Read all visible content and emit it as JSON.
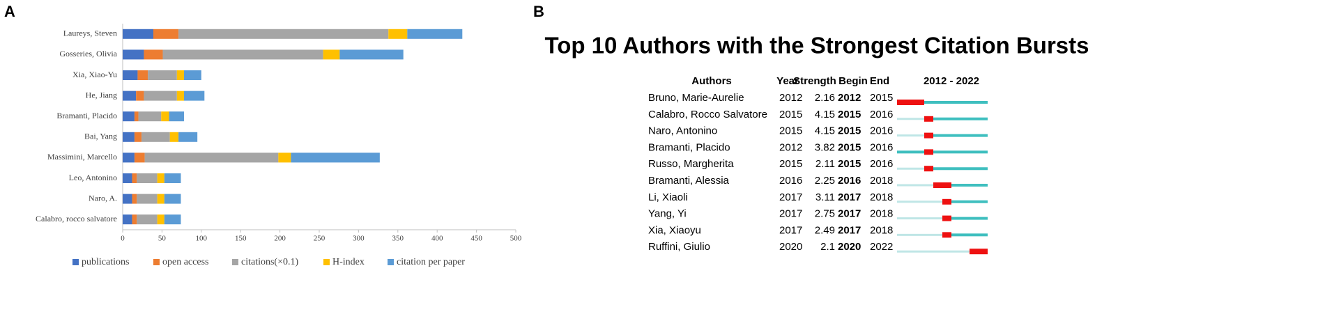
{
  "panel_labels": [
    "A",
    "B"
  ],
  "chart_data": {
    "type": "bar",
    "orientation": "horizontal",
    "stacked": true,
    "categories": [
      "Laureys, Steven",
      "Gosseries, Olivia",
      "Xia, Xiao-Yu",
      "He, Jiang",
      "Bramanti, Placido",
      "Bai, Yang",
      "Massimini, Marcello",
      "Leo, Antonino",
      "Naro, A.",
      "Calabro, rocco salvatore"
    ],
    "series": [
      {
        "name": "publications",
        "color": "#4472c4",
        "values": [
          39,
          27,
          19,
          17,
          15,
          15,
          15,
          12,
          12,
          12
        ]
      },
      {
        "name": "open access",
        "color": "#ed7d31",
        "values": [
          32,
          24,
          13,
          10,
          5,
          9,
          13,
          6,
          6,
          6
        ]
      },
      {
        "name": "citations(×0.1)",
        "color": "#a5a5a5",
        "values": [
          267,
          204,
          37,
          42,
          29,
          36,
          170,
          26,
          26,
          26
        ]
      },
      {
        "name": "H-index",
        "color": "#ffc000",
        "values": [
          24,
          21,
          9,
          9,
          10,
          11,
          16,
          9,
          9,
          9
        ]
      },
      {
        "name": "citation per paper",
        "color": "#5b9bd5",
        "values": [
          70,
          81,
          22,
          26,
          19,
          24,
          113,
          21,
          21,
          21
        ]
      }
    ],
    "xlim": [
      0,
      500
    ],
    "xticks": [
      0,
      50,
      100,
      150,
      200,
      250,
      300,
      350,
      400,
      450,
      500
    ],
    "legend": "bottom"
  },
  "table": {
    "title": "Top 10 Authors with the Strongest Citation Bursts",
    "headers": [
      "Authors",
      "Year",
      "Strength",
      "Begin",
      "End",
      "2012 - 2022"
    ],
    "range": [
      2012,
      2022
    ],
    "rows": [
      [
        "Bruno, Marie-Aurelie",
        2012,
        2.16,
        2012,
        2015
      ],
      [
        "Calabro, Rocco Salvatore",
        2015,
        4.15,
        2015,
        2016
      ],
      [
        "Naro, Antonino",
        2015,
        4.15,
        2015,
        2016
      ],
      [
        "Bramanti, Placido",
        2012,
        3.82,
        2015,
        2016
      ],
      [
        "Russo, Margherita",
        2015,
        2.11,
        2015,
        2016
      ],
      [
        "Bramanti, Alessia",
        2016,
        2.25,
        2016,
        2018
      ],
      [
        "Li, Xiaoli",
        2017,
        3.11,
        2017,
        2018
      ],
      [
        "Yang, Yi",
        2017,
        2.75,
        2017,
        2018
      ],
      [
        "Xia, Xiaoyu",
        2017,
        2.49,
        2017,
        2018
      ],
      [
        "Ruffini, Giulio",
        2020,
        2.1,
        2020,
        2022
      ]
    ]
  }
}
